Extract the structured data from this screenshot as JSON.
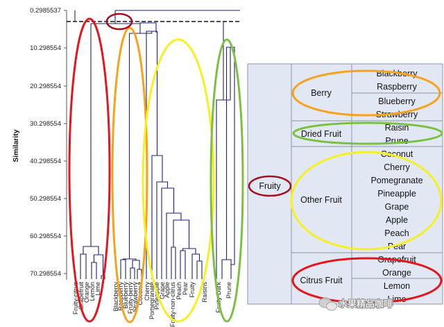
{
  "dendrogram": {
    "y_axis_label": "Similarity",
    "y_ticks": [
      "0.2985537",
      "10.298554",
      "20.298554",
      "30.298554",
      "40.298554",
      "50.298554",
      "60.298554",
      "70.298554"
    ],
    "leaves": [
      "Fruity-citrus",
      "Grapefruit",
      "Orange",
      "Lemon",
      "Lime",
      "Blackberry",
      "Raspberry",
      "Blueberry",
      "Fruity-berry",
      "Strawberry",
      "Coconut",
      "Cherry",
      "Pomegranate",
      "Pineapple",
      "Grape",
      "Apple",
      "Fruity-non-citrus",
      "Peach",
      "Pear",
      "Fruity",
      "Raisins",
      "Fruity-Dark",
      "Prune"
    ],
    "highlight_colors": {
      "citrus": "#e8141c",
      "berry": "#f7a21b",
      "other": "#f7ef1e",
      "dried": "#7ac142",
      "top": "#a50e1c"
    }
  },
  "table": {
    "root": "Fruity",
    "groups": [
      {
        "name": "Berry",
        "items": [
          "Blackberry",
          "Raspberry",
          "Blueberry",
          "Strawberry"
        ]
      },
      {
        "name": "Dried Fruit",
        "items": [
          "Raisin",
          "Prune"
        ]
      },
      {
        "name": "Other Fruit",
        "items": [
          "Coconut",
          "Cherry",
          "Pomegranate",
          "Pineapple",
          "Grape",
          "Apple",
          "Peach",
          "Pear"
        ]
      },
      {
        "name": "Citrus Fruit",
        "items": [
          "Grapefruit",
          "Orange",
          "Lemon",
          "Lime"
        ]
      }
    ]
  },
  "watermark": "水果精品咖啡"
}
